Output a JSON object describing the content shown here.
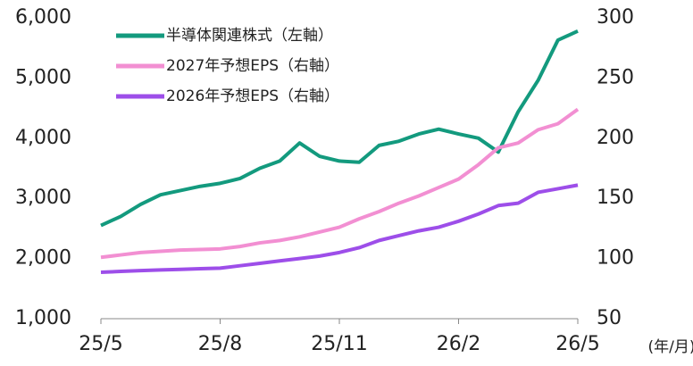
{
  "chart_data": {
    "type": "line",
    "x": [
      0,
      0.5,
      1,
      1.5,
      2,
      2.5,
      3,
      3.5,
      4,
      4.5,
      5,
      5.5,
      6,
      6.5,
      7,
      7.5,
      8,
      8.5,
      9,
      9.5,
      10,
      10.5,
      11,
      11.5,
      12
    ],
    "xlim": [
      0,
      12
    ],
    "xticks": [
      {
        "value": 0,
        "label": "25/5"
      },
      {
        "value": 3,
        "label": "25/8"
      },
      {
        "value": 6,
        "label": "25/11"
      },
      {
        "value": 9,
        "label": "26/2"
      },
      {
        "value": 12,
        "label": "26/5"
      }
    ],
    "x_label": "(年/月)",
    "ylim": [
      1000,
      6000
    ],
    "yticks": [
      {
        "value": 1000,
        "label": "1,000"
      },
      {
        "value": 2000,
        "label": "2,000"
      },
      {
        "value": 3000,
        "label": "3,000"
      },
      {
        "value": 4000,
        "label": "4,000"
      },
      {
        "value": 5000,
        "label": "5,000"
      },
      {
        "value": 6000,
        "label": "6,000"
      }
    ],
    "y2lim": [
      50,
      300
    ],
    "y2ticks": [
      50,
      100,
      150,
      200,
      250,
      300
    ],
    "legend": "upper left",
    "series": [
      {
        "name": "半導体関連株式（左軸）",
        "color": "#139a7e",
        "axis": "y",
        "values": [
          2550,
          2700,
          2900,
          3060,
          3130,
          3200,
          3250,
          3330,
          3500,
          3620,
          3920,
          3700,
          3620,
          3600,
          3880,
          3950,
          4070,
          4150,
          4070,
          4000,
          3770,
          4440,
          4960,
          5630,
          5780
        ]
      },
      {
        "name": "2027年予想EPS（右軸）",
        "color": "#f28fd2",
        "axis": "y2",
        "values": [
          101,
          103,
          105,
          106,
          107,
          107.5,
          108,
          110,
          113,
          115,
          118,
          122,
          126,
          133,
          139,
          146,
          152,
          159,
          166,
          178,
          192,
          196,
          207,
          212,
          224
        ]
      },
      {
        "name": "2026年予想EPS（右軸）",
        "color": "#9d4ee9",
        "axis": "y2",
        "values": [
          88.6,
          89.3,
          90,
          90.5,
          91,
          91.5,
          92,
          94,
          96,
          98,
          100,
          102,
          105,
          109,
          115,
          119,
          123,
          126,
          131,
          137,
          144,
          146,
          155,
          158,
          161
        ]
      }
    ]
  }
}
